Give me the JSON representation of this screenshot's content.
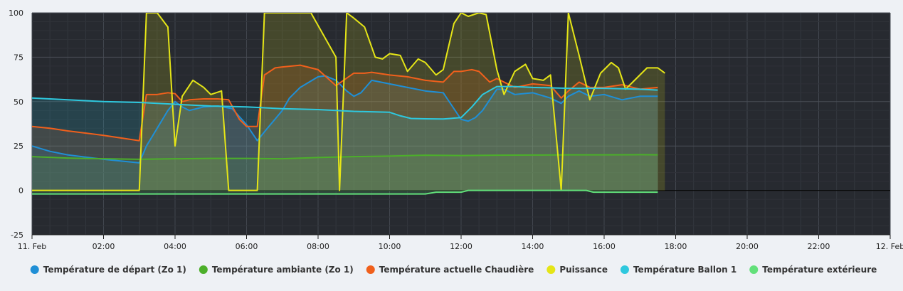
{
  "chart_data": {
    "type": "line",
    "title": "",
    "xlabel": "",
    "ylabel": "",
    "ylim": [
      -25,
      100
    ],
    "xlim": [
      0,
      24
    ],
    "x_unit": "hours since 11. Feb 00:00",
    "y_ticks": [
      "100",
      "75",
      "50",
      "25",
      "0",
      "-25"
    ],
    "x_ticks": [
      "11. Feb",
      "02:00",
      "04:00",
      "06:00",
      "08:00",
      "10:00",
      "12:00",
      "14:00",
      "16:00",
      "18:00",
      "20:00",
      "22:00",
      "12. Feb"
    ],
    "grid": true,
    "legend_position": "bottom",
    "series": [
      {
        "name": "Température de départ (Zo 1)",
        "color": "#1f8fd6",
        "points": [
          [
            0,
            25
          ],
          [
            0.5,
            22
          ],
          [
            1,
            20
          ],
          [
            2,
            17.5
          ],
          [
            2.5,
            16.5
          ],
          [
            3,
            15.5
          ],
          [
            3.2,
            25
          ],
          [
            3.5,
            35
          ],
          [
            3.8,
            45
          ],
          [
            4,
            50
          ],
          [
            4.2,
            47
          ],
          [
            4.4,
            45
          ],
          [
            4.8,
            47
          ],
          [
            5.2,
            47.5
          ],
          [
            5.6,
            46
          ],
          [
            6,
            37
          ],
          [
            6.3,
            28
          ],
          [
            6.5,
            33
          ],
          [
            7,
            45
          ],
          [
            7.2,
            52
          ],
          [
            7.5,
            58
          ],
          [
            8,
            64
          ],
          [
            8.2,
            64.5
          ],
          [
            8.5,
            62
          ],
          [
            8.8,
            56
          ],
          [
            9,
            53
          ],
          [
            9.2,
            55
          ],
          [
            9.5,
            62
          ],
          [
            10,
            60
          ],
          [
            10.5,
            58
          ],
          [
            11,
            56
          ],
          [
            11.5,
            55
          ],
          [
            12,
            40
          ],
          [
            12.2,
            39
          ],
          [
            12.4,
            41
          ],
          [
            12.6,
            45
          ],
          [
            13,
            57
          ],
          [
            13.2,
            57
          ],
          [
            13.5,
            54
          ],
          [
            14,
            55
          ],
          [
            14.5,
            52
          ],
          [
            14.8,
            49
          ],
          [
            15,
            53
          ],
          [
            15.3,
            56
          ],
          [
            15.6,
            53
          ],
          [
            16,
            54
          ],
          [
            16.5,
            51
          ],
          [
            17,
            53
          ],
          [
            17.5,
            53
          ]
        ]
      },
      {
        "name": "Température ambiante (Zo 1)",
        "color": "#4caf2a",
        "points": [
          [
            0,
            19
          ],
          [
            1,
            18.2
          ],
          [
            2,
            17.8
          ],
          [
            3,
            17.5
          ],
          [
            4,
            17.8
          ],
          [
            5,
            18
          ],
          [
            6,
            18
          ],
          [
            7,
            17.8
          ],
          [
            8,
            18.5
          ],
          [
            9,
            19
          ],
          [
            10,
            19.3
          ],
          [
            11,
            19.8
          ],
          [
            12,
            19.6
          ],
          [
            13,
            19.8
          ],
          [
            14,
            19.9
          ],
          [
            15,
            20
          ],
          [
            16,
            20
          ],
          [
            17,
            20.1
          ],
          [
            17.5,
            20
          ]
        ]
      },
      {
        "name": "Température actuelle Chaudière",
        "color": "#f0601c",
        "points": [
          [
            0,
            36
          ],
          [
            0.5,
            35
          ],
          [
            1,
            33.5
          ],
          [
            2,
            31
          ],
          [
            2.5,
            29.5
          ],
          [
            3,
            28
          ],
          [
            3.2,
            54
          ],
          [
            3.5,
            54
          ],
          [
            3.8,
            55
          ],
          [
            4,
            54.5
          ],
          [
            4.2,
            50
          ],
          [
            4.4,
            51
          ],
          [
            4.8,
            51.5
          ],
          [
            5.2,
            51.5
          ],
          [
            5.5,
            51
          ],
          [
            5.8,
            40
          ],
          [
            6,
            36
          ],
          [
            6.3,
            36
          ],
          [
            6.5,
            65
          ],
          [
            6.8,
            69
          ],
          [
            7,
            69.5
          ],
          [
            7.5,
            70.5
          ],
          [
            8,
            68
          ],
          [
            8.5,
            59
          ],
          [
            9,
            66
          ],
          [
            9.3,
            66
          ],
          [
            9.5,
            66.5
          ],
          [
            10,
            65
          ],
          [
            10.5,
            64
          ],
          [
            11,
            62
          ],
          [
            11.5,
            61
          ],
          [
            11.8,
            67
          ],
          [
            12,
            67
          ],
          [
            12.3,
            68
          ],
          [
            12.5,
            67
          ],
          [
            12.8,
            61
          ],
          [
            13,
            63
          ],
          [
            13.5,
            58
          ],
          [
            14,
            60
          ],
          [
            14.5,
            59
          ],
          [
            14.8,
            52
          ],
          [
            15,
            56
          ],
          [
            15.3,
            61
          ],
          [
            15.6,
            58
          ],
          [
            16,
            58
          ],
          [
            16.5,
            59.5
          ],
          [
            17,
            57
          ],
          [
            17.5,
            58
          ]
        ]
      },
      {
        "name": "Puissance",
        "color": "#e5e517",
        "points": [
          [
            0,
            0
          ],
          [
            3,
            0
          ],
          [
            3.2,
            100
          ],
          [
            3.5,
            100
          ],
          [
            3.8,
            92
          ],
          [
            4,
            25
          ],
          [
            4.2,
            53
          ],
          [
            4.5,
            62
          ],
          [
            4.8,
            58
          ],
          [
            5,
            54
          ],
          [
            5.3,
            56
          ],
          [
            5.5,
            0
          ],
          [
            6.3,
            0
          ],
          [
            6.5,
            100
          ],
          [
            7,
            100
          ],
          [
            7.8,
            100
          ],
          [
            8.5,
            75
          ],
          [
            8.6,
            0
          ],
          [
            8.8,
            100
          ],
          [
            9,
            97
          ],
          [
            9.3,
            92
          ],
          [
            9.6,
            75
          ],
          [
            9.8,
            74
          ],
          [
            10,
            77
          ],
          [
            10.3,
            76
          ],
          [
            10.5,
            67
          ],
          [
            10.8,
            74
          ],
          [
            11,
            72
          ],
          [
            11.3,
            65
          ],
          [
            11.5,
            68
          ],
          [
            11.8,
            94
          ],
          [
            12,
            100
          ],
          [
            12.2,
            98
          ],
          [
            12.5,
            100
          ],
          [
            12.7,
            99
          ],
          [
            13,
            68
          ],
          [
            13.2,
            54
          ],
          [
            13.5,
            67
          ],
          [
            13.8,
            71
          ],
          [
            14,
            63
          ],
          [
            14.3,
            62
          ],
          [
            14.5,
            65
          ],
          [
            14.8,
            0
          ],
          [
            15,
            100
          ],
          [
            15.3,
            76
          ],
          [
            15.6,
            51
          ],
          [
            15.9,
            66
          ],
          [
            16.2,
            72
          ],
          [
            16.4,
            69
          ],
          [
            16.6,
            57
          ],
          [
            17,
            65
          ],
          [
            17.2,
            69
          ],
          [
            17.5,
            69
          ],
          [
            17.7,
            66
          ]
        ]
      },
      {
        "name": "Température Ballon 1",
        "color": "#2ec8de",
        "points": [
          [
            0,
            52
          ],
          [
            1,
            51
          ],
          [
            2,
            50
          ],
          [
            3,
            49.5
          ],
          [
            4,
            48.5
          ],
          [
            5,
            47.5
          ],
          [
            6,
            47
          ],
          [
            7,
            46
          ],
          [
            8,
            45.5
          ],
          [
            9,
            44.5
          ],
          [
            10,
            44
          ],
          [
            10.3,
            42
          ],
          [
            10.6,
            40.5
          ],
          [
            11,
            40.3
          ],
          [
            11.5,
            40.2
          ],
          [
            12,
            41
          ],
          [
            12.3,
            47
          ],
          [
            12.6,
            54
          ],
          [
            13,
            58.5
          ],
          [
            13.5,
            58.5
          ],
          [
            14,
            58
          ],
          [
            15,
            57.5
          ],
          [
            16,
            57.5
          ],
          [
            17,
            57
          ],
          [
            17.5,
            56.5
          ]
        ]
      },
      {
        "name": "Température extérieure",
        "color": "#62e07a",
        "points": [
          [
            0,
            -2
          ],
          [
            1,
            -2
          ],
          [
            3,
            -2
          ],
          [
            6,
            -2
          ],
          [
            9,
            -2
          ],
          [
            10,
            -2
          ],
          [
            11,
            -2
          ],
          [
            11.3,
            -1
          ],
          [
            12,
            -1
          ],
          [
            12.2,
            0
          ],
          [
            13,
            0
          ],
          [
            15,
            0
          ],
          [
            15.5,
            0
          ],
          [
            15.7,
            -1
          ],
          [
            16,
            -1
          ],
          [
            17.5,
            -1
          ]
        ]
      }
    ]
  }
}
